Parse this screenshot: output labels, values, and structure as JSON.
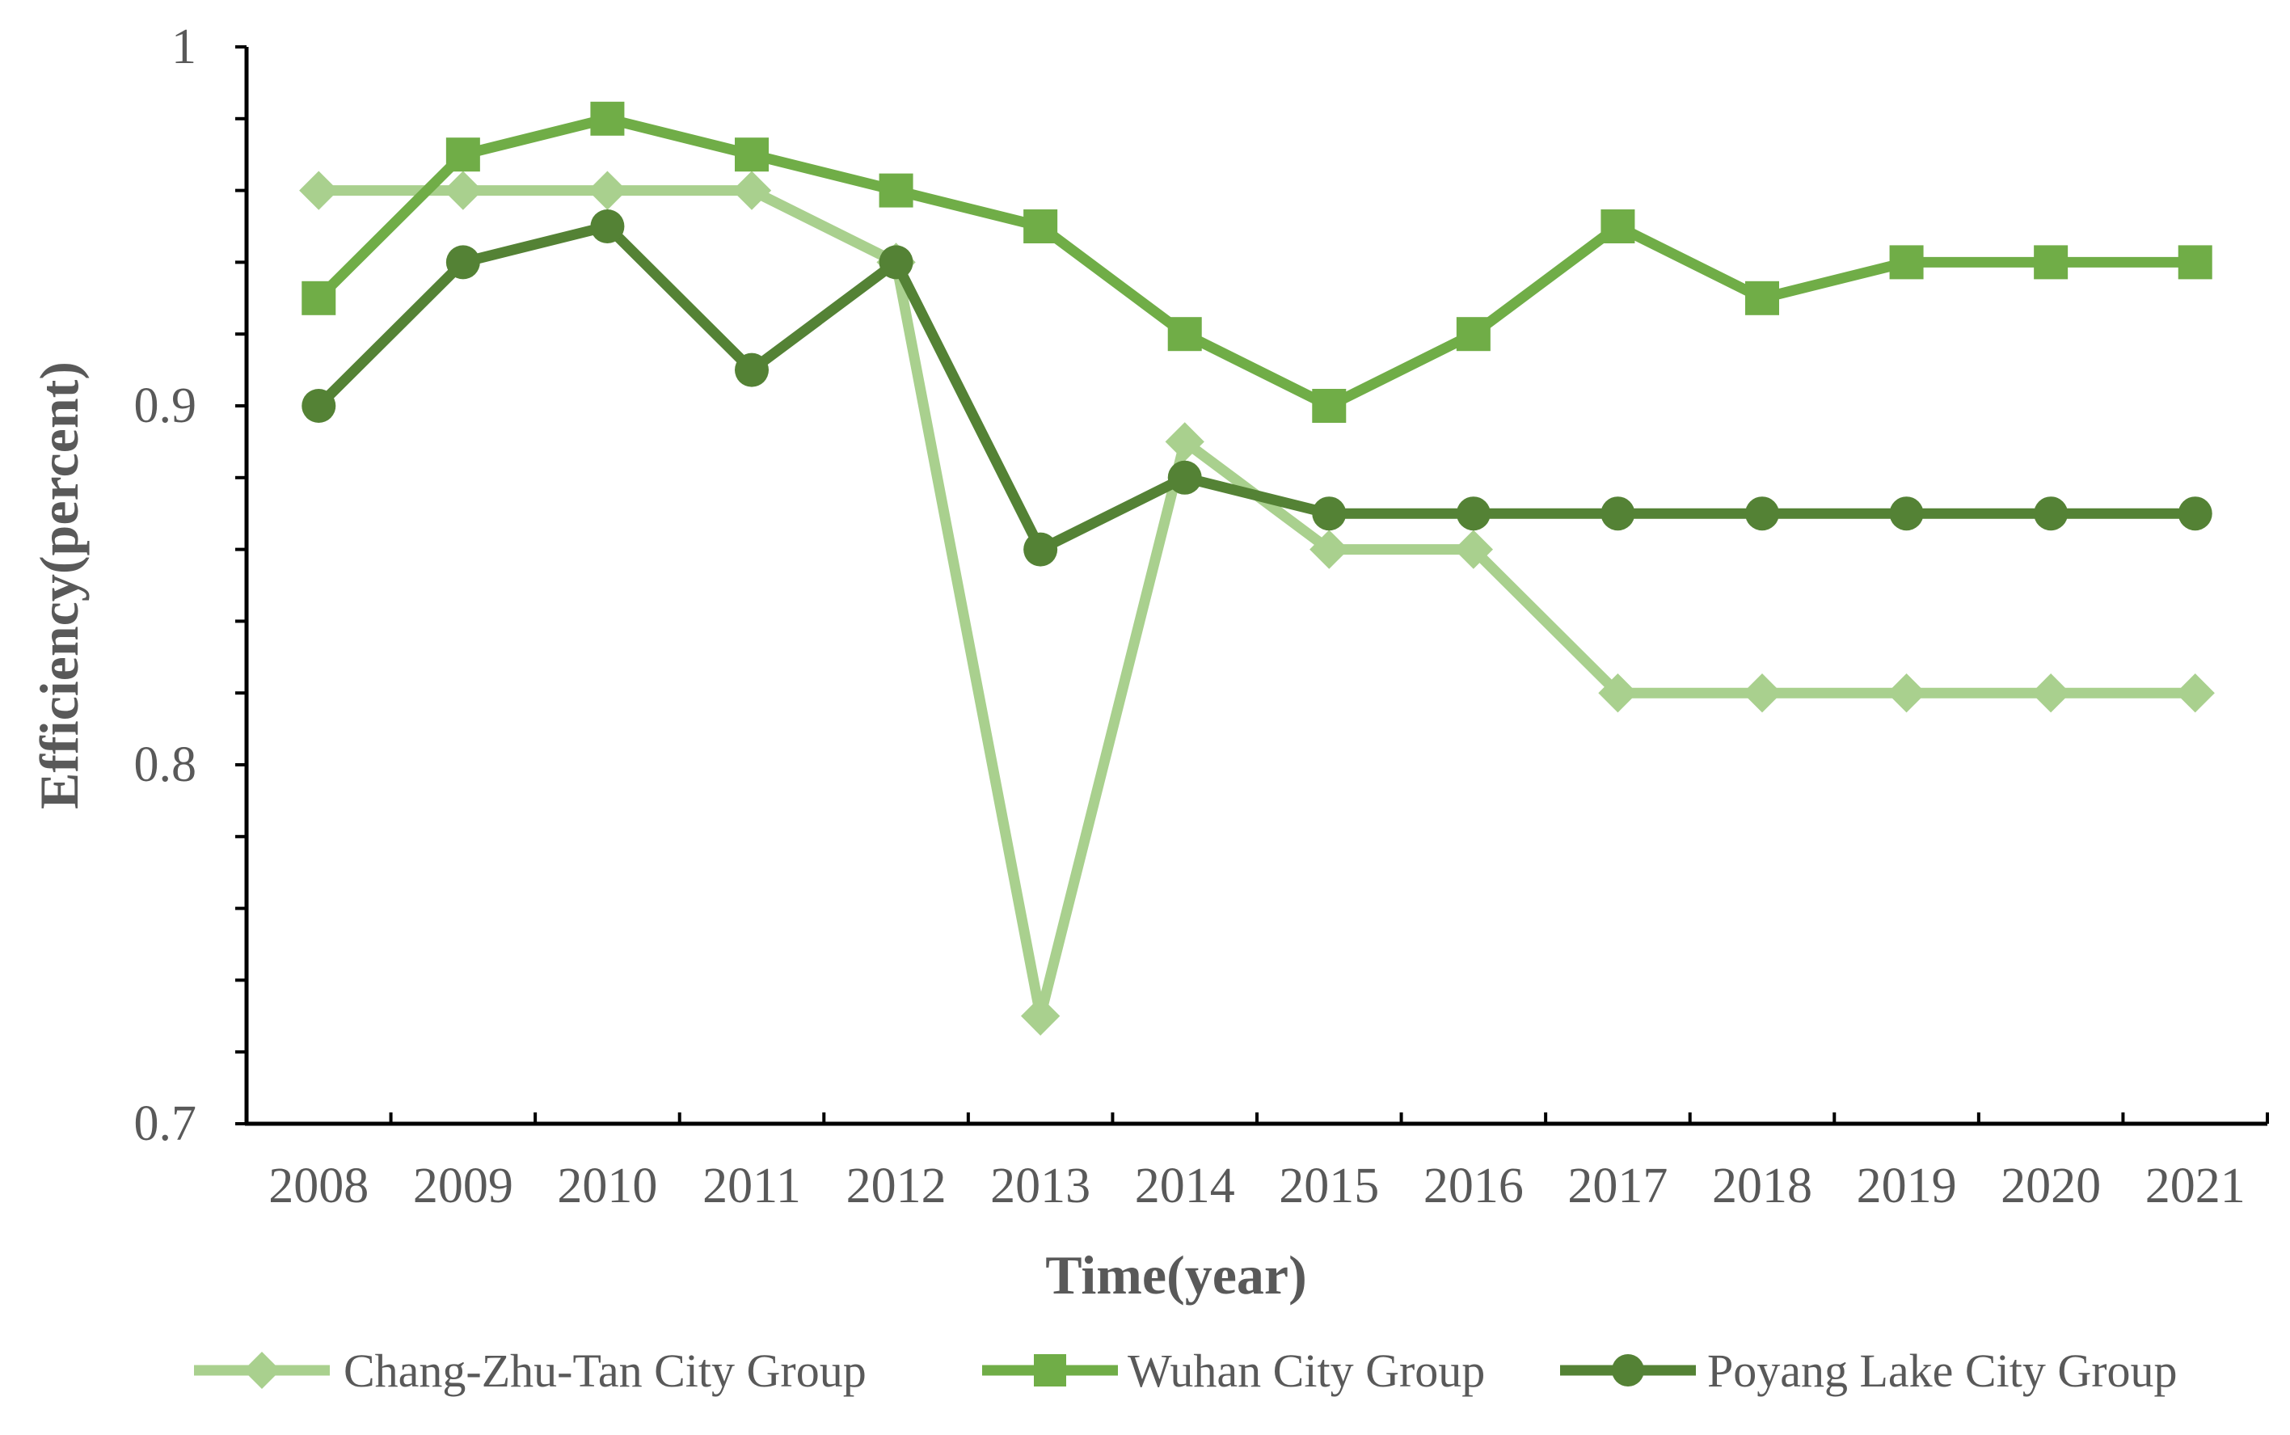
{
  "chart_data": {
    "type": "line",
    "title": "",
    "xlabel": "Time(year)",
    "ylabel": "Efficiency(percent)",
    "ylim": [
      0.7,
      1.0
    ],
    "yticks": [
      "0.7",
      "0.8",
      "0.9",
      "1"
    ],
    "categories": [
      "2008",
      "2009",
      "2010",
      "2011",
      "2012",
      "2013",
      "2014",
      "2015",
      "2016",
      "2017",
      "2018",
      "2019",
      "2020",
      "2021"
    ],
    "grid": false,
    "legend_position": "bottom",
    "series": [
      {
        "name": "Chang-Zhu-Tan City Group",
        "color": "#a9d08e",
        "marker": "diamond",
        "values": [
          0.96,
          0.96,
          0.96,
          0.96,
          0.94,
          0.73,
          0.89,
          0.86,
          0.86,
          0.82,
          0.82,
          0.82,
          0.82,
          0.82
        ]
      },
      {
        "name": "Wuhan City Group",
        "color": "#70ad47",
        "marker": "square",
        "values": [
          0.93,
          0.97,
          0.98,
          0.97,
          0.96,
          0.95,
          0.92,
          0.9,
          0.92,
          0.95,
          0.93,
          0.94,
          0.94,
          0.94
        ]
      },
      {
        "name": "Poyang Lake City Group",
        "color": "#548235",
        "marker": "circle",
        "values": [
          0.9,
          0.94,
          0.95,
          0.91,
          0.94,
          0.86,
          0.88,
          0.87,
          0.87,
          0.87,
          0.87,
          0.87,
          0.87,
          0.87
        ]
      }
    ]
  }
}
